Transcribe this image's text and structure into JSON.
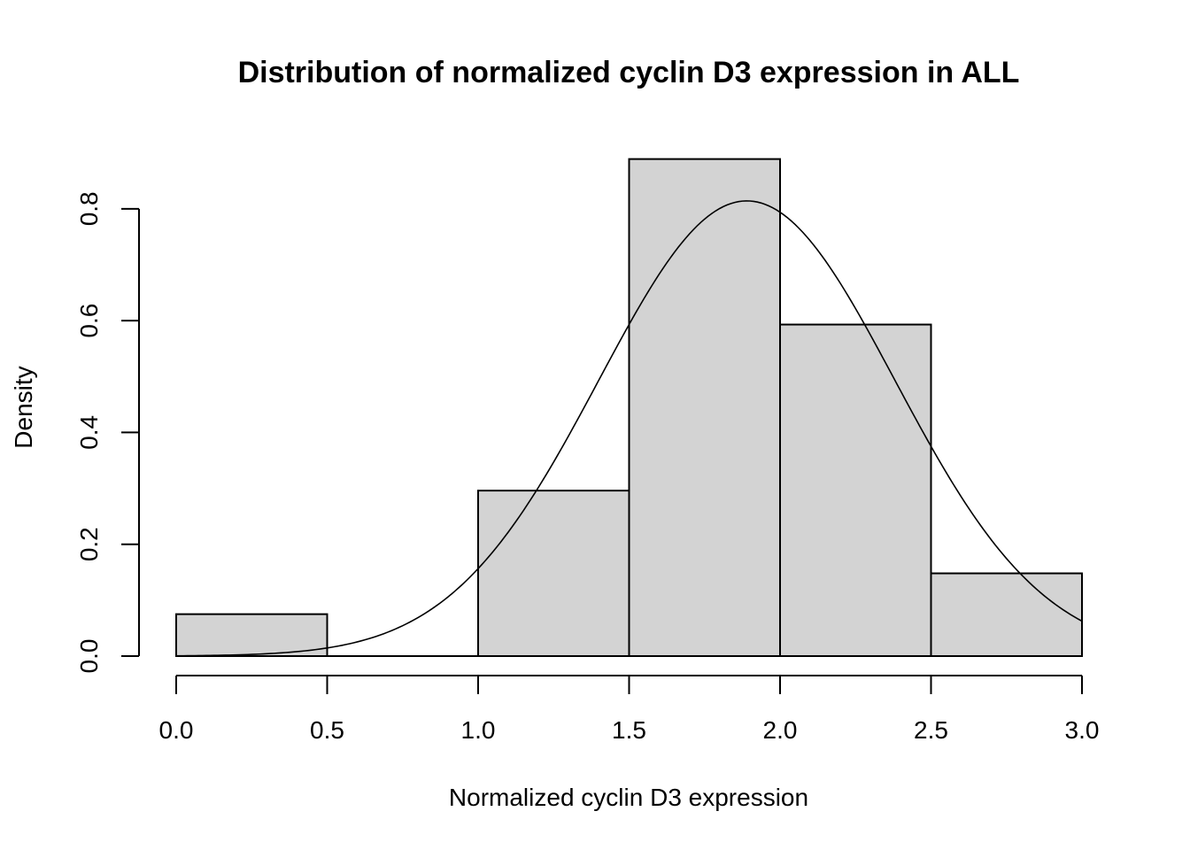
{
  "chart_data": {
    "type": "bar",
    "title": "Distribution of normalized cyclin D3 expression in ALL",
    "xlabel": "Normalized cyclin D3 expression",
    "ylabel": "Density",
    "xlim": [
      0,
      3
    ],
    "ylim": [
      0,
      0.89
    ],
    "x_ticks": [
      "0.0",
      "0.5",
      "1.0",
      "1.5",
      "2.0",
      "2.5",
      "3.0"
    ],
    "y_ticks": [
      "0.0",
      "0.2",
      "0.4",
      "0.6",
      "0.8"
    ],
    "bins": [
      {
        "from": 0.0,
        "to": 0.5,
        "density": 0.075
      },
      {
        "from": 0.5,
        "to": 1.0,
        "density": 0.0
      },
      {
        "from": 1.0,
        "to": 1.5,
        "density": 0.296
      },
      {
        "from": 1.5,
        "to": 2.0,
        "density": 0.889
      },
      {
        "from": 2.0,
        "to": 2.5,
        "density": 0.593
      },
      {
        "from": 2.5,
        "to": 3.0,
        "density": 0.148
      }
    ],
    "density_curve": {
      "type": "normal",
      "mean": 1.89,
      "sd": 0.49,
      "x_range": [
        0.0,
        3.0
      ]
    },
    "grid": false,
    "legend": "none"
  }
}
